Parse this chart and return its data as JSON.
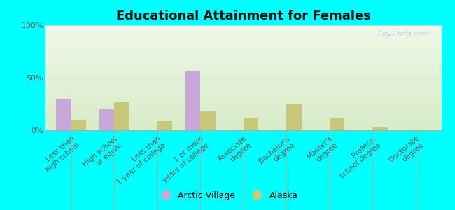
{
  "title": "Educational Attainment for Females",
  "categories": [
    "Less than\nhigh school",
    "High school\nor equiv.",
    "Less than\n1 year of college",
    "1 or more\nyears of college",
    "Associate\ndegree",
    "Bachelor's\ndegree",
    "Master's\ndegree",
    "Profess.\nschool degree",
    "Doctorate\ndegree"
  ],
  "arctic_village": [
    30.0,
    20.0,
    0.0,
    57.0,
    0.0,
    0.0,
    0.0,
    0.0,
    0.0
  ],
  "alaska": [
    10.0,
    27.0,
    9.0,
    18.0,
    12.0,
    25.0,
    12.0,
    3.0,
    1.0
  ],
  "arctic_color": "#c8a8d8",
  "alaska_color": "#c8c87a",
  "background_outer": "#00ffff",
  "yticks": [
    0,
    50,
    100
  ],
  "ylabels": [
    "0%",
    "50%",
    "100%"
  ],
  "ylim": [
    0,
    100
  ],
  "bar_width": 0.35,
  "title_fontsize": 13,
  "tick_fontsize": 7.5,
  "legend_fontsize": 9,
  "watermark": "City-Data.com"
}
